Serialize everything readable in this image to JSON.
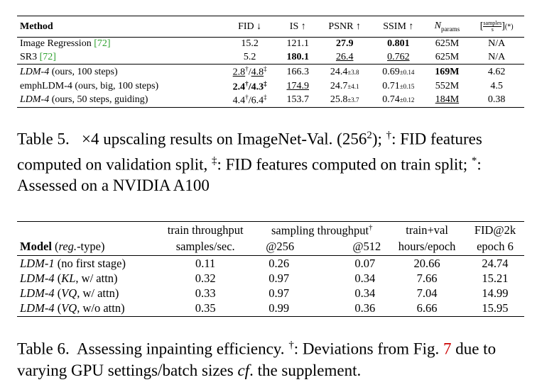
{
  "table5": {
    "headers": {
      "method": "Method",
      "fid": "FID ↓",
      "is": "IS ↑",
      "psnr": "PSNR ↑",
      "ssim": "SSIM ↑",
      "nparams_n": "N",
      "nparams_sub": "params",
      "samples_num": "samples",
      "samples_den": "s",
      "samples_suffix": "(*)"
    },
    "rows": [
      {
        "method": "Image Regression ",
        "cite": "[72]",
        "fid": "15.2",
        "is": "121.1",
        "psnr": "27.9",
        "ssim": "0.801",
        "nparams": "625M",
        "samples": "N/A"
      },
      {
        "method": "SR3 ",
        "cite": "[72]",
        "fid": "5.2",
        "is": "180.1",
        "psnr": "26.4",
        "ssim": "0.762",
        "nparams": "625M",
        "samples": "N/A"
      },
      {
        "method_i": "LDM-4",
        "method_rest": " (ours, 100 steps)",
        "fid_a": "2.8",
        "fid_a_sup": "†",
        "fid_sep": "/",
        "fid_b": "4.8",
        "fid_b_sup": "‡",
        "is": "166.3",
        "psnr": "24.4",
        "psnr_pm": "±3.8",
        "ssim": "0.69",
        "ssim_pm": "±0.14",
        "nparams": "169M",
        "samples": "4.62"
      },
      {
        "method": "emphLDM-4 (ours, big, 100 steps)",
        "fid_a": "2.4",
        "fid_a_sup": "†",
        "fid_sep": "/",
        "fid_b": "4.3",
        "fid_b_sup": "‡",
        "is": "174.9",
        "psnr": "24.7",
        "psnr_pm": "±4.1",
        "ssim": "0.71",
        "ssim_pm": "±0.15",
        "nparams": "552M",
        "samples": "4.5"
      },
      {
        "method_i": "LDM-4",
        "method_rest": " (ours, 50 steps, guiding)",
        "fid_a": "4.4",
        "fid_a_sup": "†",
        "fid_sep": "/",
        "fid_b": "6.4",
        "fid_b_sup": "‡",
        "is": "153.7",
        "psnr": "25.8",
        "psnr_pm": "±3.7",
        "ssim": "0.74",
        "ssim_pm": "±0.12",
        "nparams": "184M",
        "samples": "0.38"
      }
    ],
    "caption": {
      "label": "Table 5.",
      "p1": "   ×4 upscaling results on ImageNet-Val. (256",
      "p1_sup": "2",
      "p2": "); ",
      "dag": "†",
      "p3": ": FID features computed on validation split, ",
      "ddag": "‡",
      "p4": ": FID features computed on train split; ",
      "star": "*",
      "p5": ": Assessed on a NVIDIA A100"
    }
  },
  "table6": {
    "headers": {
      "train_top": "train throughput",
      "train_bot": "samples/sec.",
      "sampling_top": "sampling throughput",
      "sampling_sup": "†",
      "s256": "@256",
      "s512": "@512",
      "tv_top": "train+val",
      "tv_bot": "hours/epoch",
      "fid_top": "FID@2k",
      "fid_bot": "epoch 6",
      "model_b": "Model",
      "model_i": "reg.",
      "model_rest": "-type)"
    },
    "rows": [
      {
        "m_i": "LDM-1",
        "m_rest": " (no first stage)",
        "train": "0.11",
        "s256": "0.26",
        "s512": "0.07",
        "tv": "20.66",
        "fid": "24.74"
      },
      {
        "m_i": "LDM-4",
        "m_paren_open": " (",
        "m_i2": "KL",
        "m_rest": ", w/ attn)",
        "train": "0.32",
        "s256": "0.97",
        "s512": "0.34",
        "tv": "7.66",
        "fid": "15.21"
      },
      {
        "m_i": "LDM-4",
        "m_paren_open": " (",
        "m_i2": "VQ",
        "m_rest": ", w/ attn)",
        "train": "0.33",
        "s256": "0.97",
        "s512": "0.34",
        "tv": "7.04",
        "fid": "14.99"
      },
      {
        "m_i": "LDM-4",
        "m_paren_open": " (",
        "m_i2": "VQ",
        "m_rest": ", w/o attn)",
        "train": "0.35",
        "s256": "0.99",
        "s512": "0.36",
        "tv": "6.66",
        "fid": "15.95"
      }
    ],
    "caption": {
      "label": "Table 6.",
      "p1": "  Assessing inpainting efficiency. ",
      "dag": "†",
      "p2": ": Deviations from Fig. ",
      "fig": "7",
      "p3": " due to varying GPU settings/batch sizes ",
      "cf": "cf",
      "p4": ". the supplement."
    }
  }
}
